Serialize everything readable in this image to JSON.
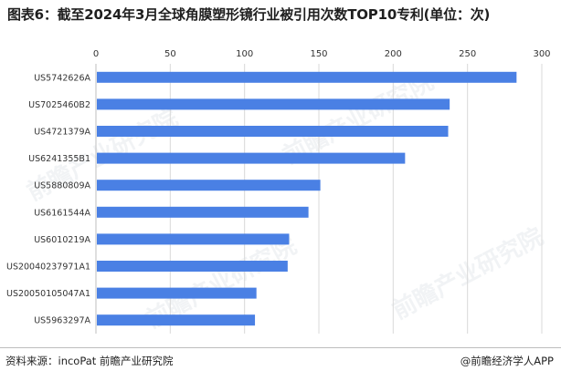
{
  "title": "图表6：截至2024年3月全球角膜塑形镜行业被引用次数TOP10专利(单位：次)",
  "source": "资料来源：incoPat 前瞻产业研究院",
  "brand": "@前瞻经济学人APP",
  "watermark": "前瞻产业研究院",
  "colors": {
    "bar": "#4a80e4",
    "grid": "#d9d9d9"
  },
  "chart_data": {
    "type": "bar",
    "orientation": "horizontal",
    "categories": [
      "US5742626A",
      "US7025460B2",
      "US4721379A",
      "US6241355B1",
      "US5880809A",
      "US6161544A",
      "US6010219A",
      "US20040237971A1",
      "US20050105047A1",
      "US5963297A"
    ],
    "values": [
      283,
      238,
      237,
      208,
      151,
      143,
      130,
      129,
      108,
      107
    ],
    "xlim": [
      0,
      300
    ],
    "xticks": [
      0,
      50,
      100,
      150,
      200,
      250,
      300
    ],
    "grid": "vertical",
    "legend": "none",
    "title": "",
    "xlabel": "",
    "ylabel": ""
  }
}
